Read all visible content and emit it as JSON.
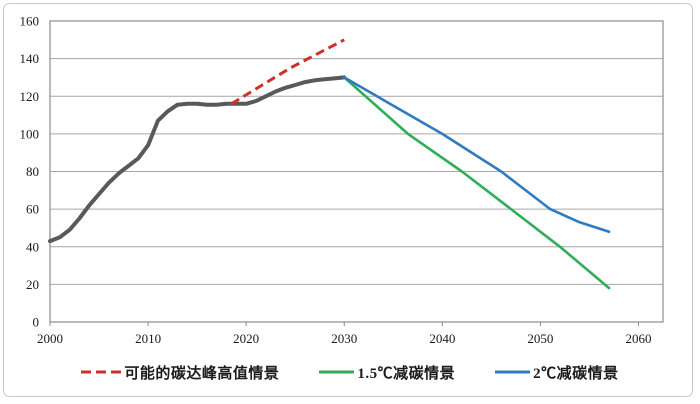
{
  "chart_data": {
    "type": "line",
    "title": "",
    "xlabel": "",
    "ylabel": "",
    "xlim": [
      2000,
      2062.5
    ],
    "ylim": [
      0,
      160
    ],
    "x_ticks": [
      2000,
      2010,
      2020,
      2030,
      2040,
      2050,
      2060
    ],
    "y_ticks": [
      0,
      20,
      40,
      60,
      80,
      100,
      120,
      140,
      160
    ],
    "grid": "horizontal-only",
    "gridline_color": "#a6a6a6",
    "plot_border_color": "#8c8c8c",
    "legend_position": "bottom-center",
    "series": [
      {
        "id": "historical-emissions",
        "label": "",
        "color": "#58595b",
        "width": 4,
        "dash": "",
        "points": [
          [
            2000,
            43
          ],
          [
            2001,
            45
          ],
          [
            2002,
            49
          ],
          [
            2003,
            55
          ],
          [
            2004,
            62
          ],
          [
            2005,
            68
          ],
          [
            2006,
            74
          ],
          [
            2007,
            79
          ],
          [
            2008,
            83
          ],
          [
            2009,
            87
          ],
          [
            2010,
            94
          ],
          [
            2011,
            107
          ],
          [
            2012,
            112
          ],
          [
            2013,
            115.5
          ],
          [
            2014,
            116
          ],
          [
            2015,
            116
          ],
          [
            2016,
            115.5
          ],
          [
            2017,
            115.5
          ],
          [
            2018,
            116
          ],
          [
            2019,
            116
          ],
          [
            2020,
            116
          ],
          [
            2021,
            117.5
          ],
          [
            2022,
            120
          ],
          [
            2023,
            122.5
          ],
          [
            2024,
            124.5
          ],
          [
            2025,
            126
          ],
          [
            2026,
            127.5
          ],
          [
            2027,
            128.5
          ],
          [
            2028,
            129
          ],
          [
            2029,
            129.5
          ],
          [
            2030,
            130
          ]
        ]
      },
      {
        "id": "peak-high-scenario",
        "label": "可能的碳达峰高值情景",
        "color": "#cb3228",
        "width": 3,
        "dash": "9 5",
        "points": [
          [
            2018.5,
            116
          ],
          [
            2024.5,
            135
          ],
          [
            2030,
            150
          ]
        ]
      },
      {
        "id": "scenario-1p5c",
        "label": "1.5℃减碳情景",
        "color": "#2fae57",
        "width": 2.6,
        "dash": "",
        "points": [
          [
            2030,
            130
          ],
          [
            2036.5,
            100
          ],
          [
            2042,
            80
          ],
          [
            2047,
            60
          ],
          [
            2052,
            40
          ],
          [
            2057,
            18
          ]
        ]
      },
      {
        "id": "scenario-2c",
        "label": "2℃减碳情景",
        "color": "#2f7bbf",
        "width": 2.6,
        "dash": "",
        "points": [
          [
            2030,
            130
          ],
          [
            2040,
            100
          ],
          [
            2046,
            80
          ],
          [
            2051,
            60
          ],
          [
            2054,
            53
          ],
          [
            2057,
            48
          ]
        ]
      }
    ]
  }
}
